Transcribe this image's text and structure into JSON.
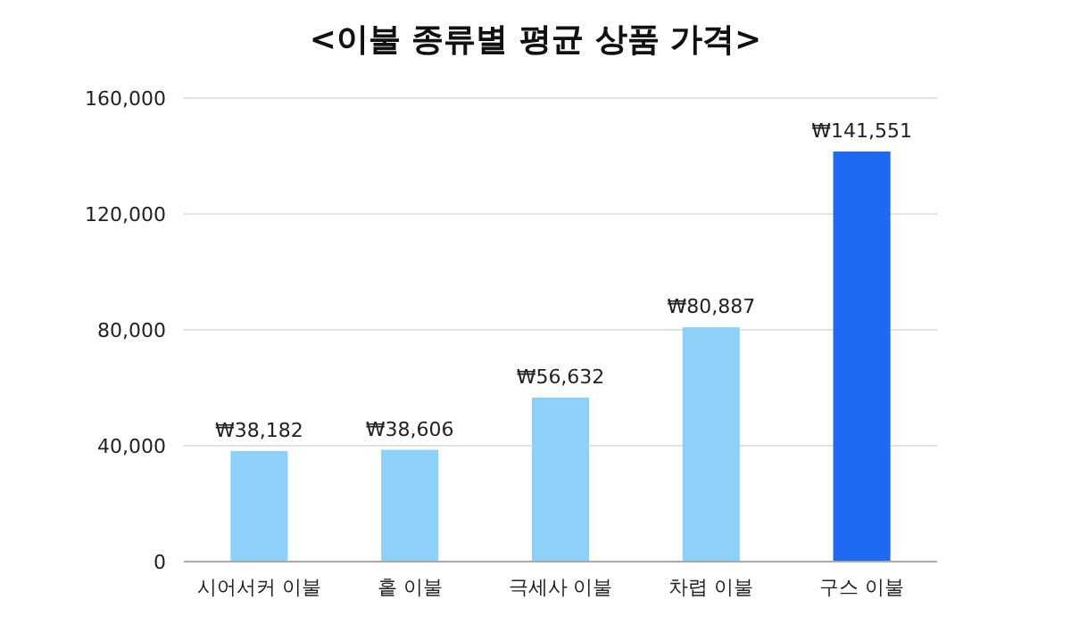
{
  "chart_data": {
    "type": "bar",
    "title": "<이불 종류별 평균 상품 가격>",
    "categories": [
      "시어서커 이불",
      "홑 이불",
      "극세사 이불",
      "차렵 이불",
      "구스 이불"
    ],
    "values": [
      38182,
      38606,
      56632,
      80887,
      141551
    ],
    "colors": [
      "#8dd1f8",
      "#8dd1f8",
      "#8dd1f8",
      "#8dd1f8",
      "#1e6af2"
    ],
    "value_labels": [
      "₩38,182",
      "₩38,606",
      "₩56,632",
      "₩80,887",
      "₩141,551"
    ],
    "ylim": [
      0,
      160000
    ],
    "yticks": [
      {
        "value": 0,
        "label": "0"
      },
      {
        "value": 40000,
        "label": "40,000"
      },
      {
        "value": 80000,
        "label": "80,000"
      },
      {
        "value": 120000,
        "label": "120,000"
      },
      {
        "value": 160000,
        "label": "160,000"
      }
    ],
    "grid": "y"
  }
}
